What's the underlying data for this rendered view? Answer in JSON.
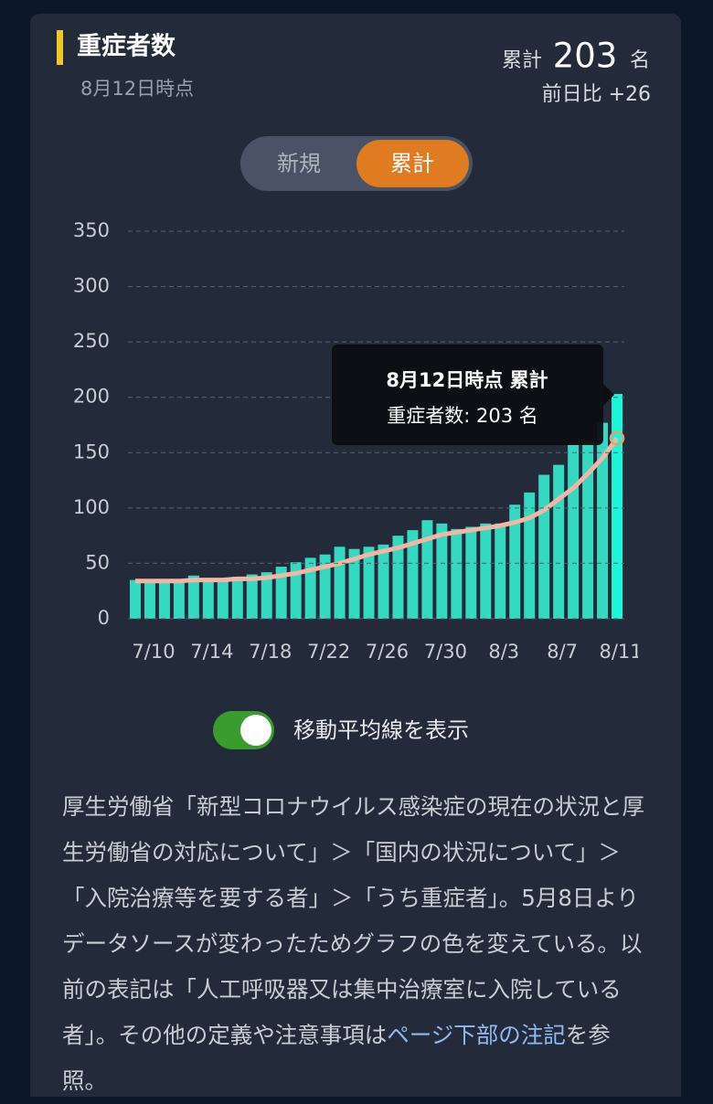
{
  "header": {
    "title": "重症者数",
    "date": "8月12日時点",
    "total_label": "累計",
    "total_value": "203",
    "unit": "名",
    "change": "前日比 +26"
  },
  "tabs": [
    "新規",
    "累計"
  ],
  "toggle": {
    "label": "移動平均線を表示"
  },
  "note": {
    "before": "厚生労働省「新型コロナウイルス感染症の現在の状況と厚生労働省の対応について」＞「国内の状況について」＞「入院治療等を要する者」＞「うち重症者」。5月8日よりデータソースが変わったためグラフの色を変えている。以前の表記は「人工呼吸器又は集中治療室に入院している者」。その他の定義や注意事項は",
    "link": "ページ下部の注記",
    "after": "を参照。"
  },
  "chart_data": {
    "type": "bar",
    "categories": [
      "7/10",
      "7/11",
      "7/12",
      "7/13",
      "7/14",
      "7/15",
      "7/16",
      "7/17",
      "7/18",
      "7/19",
      "7/20",
      "7/21",
      "7/22",
      "7/23",
      "7/24",
      "7/25",
      "7/26",
      "7/27",
      "7/28",
      "7/29",
      "7/30",
      "7/31",
      "8/1",
      "8/2",
      "8/3",
      "8/4",
      "8/5",
      "8/6",
      "8/7",
      "8/8",
      "8/9",
      "8/10",
      "8/11",
      "8/12"
    ],
    "series": [
      {
        "name": "累計",
        "color": "#34d9c1",
        "values": [
          35,
          33,
          33,
          34,
          39,
          36,
          35,
          38,
          40,
          42,
          47,
          51,
          55,
          58,
          65,
          63,
          65,
          67,
          75,
          80,
          89,
          86,
          81,
          83,
          86,
          86,
          103,
          114,
          130,
          139,
          157,
          161,
          177,
          203
        ]
      },
      {
        "name": "移動平均",
        "type": "line",
        "color": "#f3b5a6",
        "values": [
          34,
          34,
          34,
          34,
          35,
          35,
          35,
          36,
          36,
          37,
          39,
          41,
          44,
          47,
          50,
          54,
          58,
          61,
          64,
          68,
          72,
          76,
          78,
          80,
          82,
          84,
          87,
          91,
          98,
          108,
          118,
          131,
          145,
          163
        ]
      }
    ],
    "highlight_color": "#19f7d8",
    "tooltip": {
      "title": "8月12日時点 累計",
      "label": "重症者数: 203 名"
    },
    "ylim": [
      0,
      350
    ],
    "yticks": [
      0,
      50,
      100,
      150,
      200,
      250,
      300,
      350
    ],
    "grid": true
  }
}
